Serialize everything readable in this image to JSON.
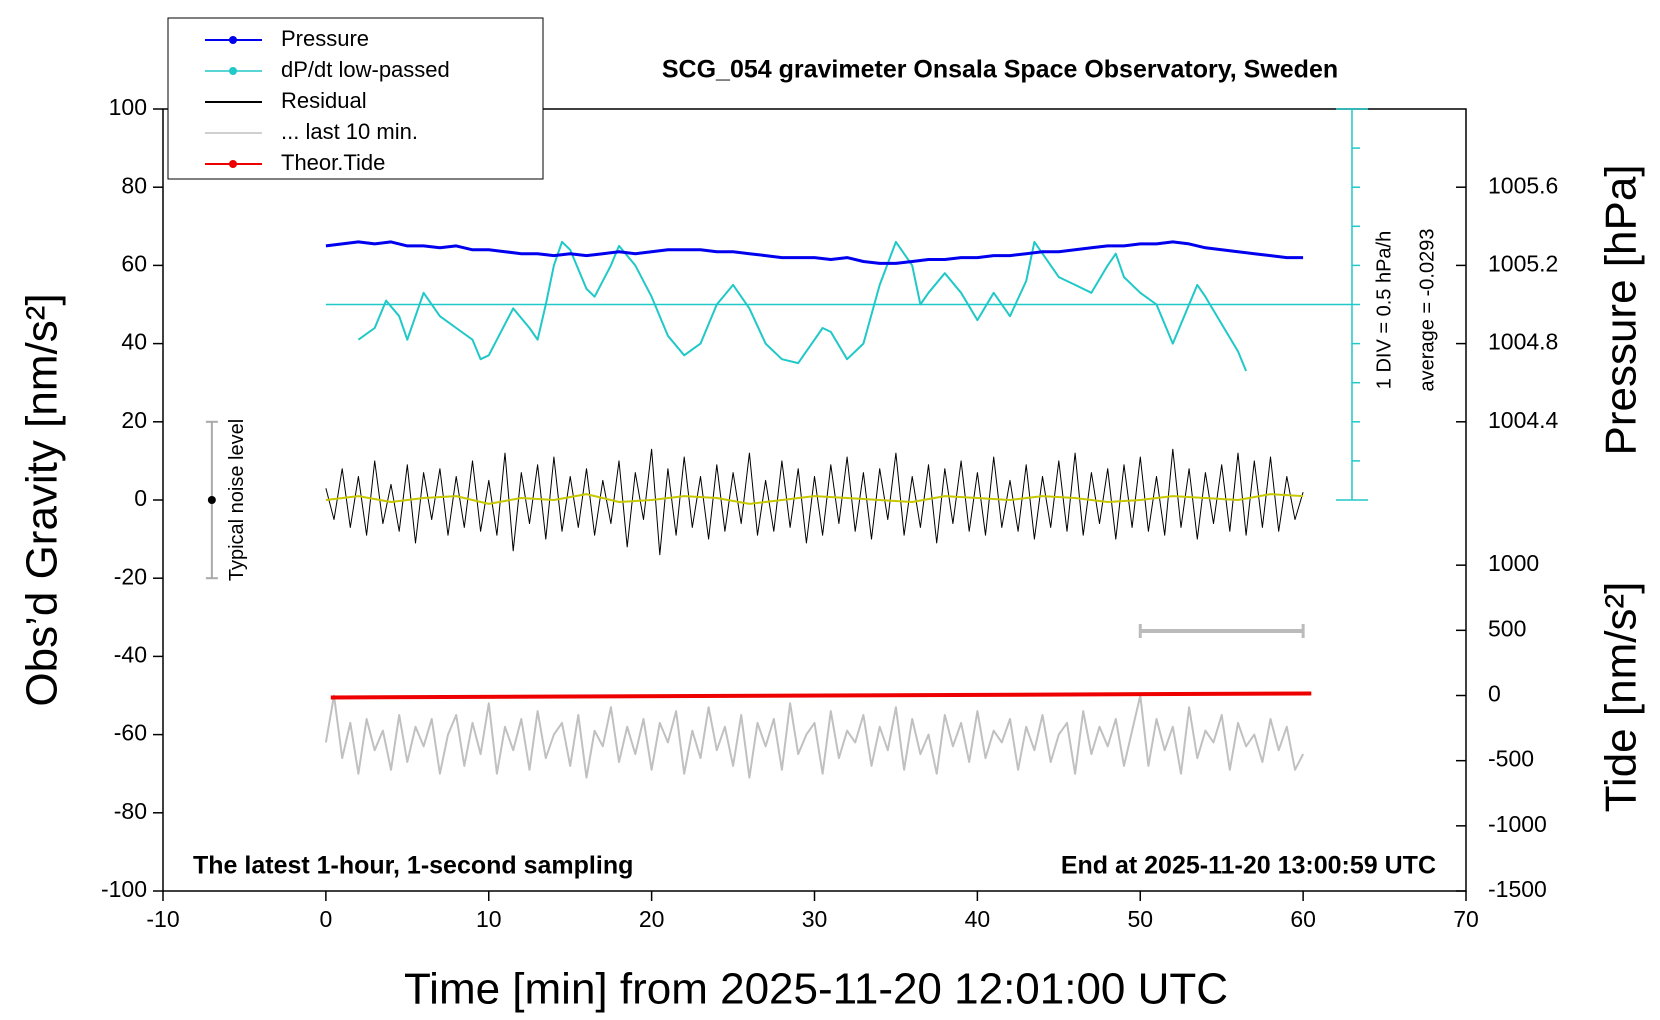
{
  "chart_data": {
    "type": "line",
    "title": "SCG_054 gravimeter Onsala Space Observatory, Sweden",
    "xlabel": "Time [min] from 2025-11-20 12:01:00 UTC",
    "ylabel": "Obs’d Gravity [nm/s²]",
    "y2label": "Pressure [hPa]",
    "y3label": "Tide [nm/s²]",
    "annotations": [
      "The latest 1-hour, 1-second sampling",
      "End at 2025-11-20 13:00:59 UTC",
      "1 DIV = 0.5 hPa/h",
      "average = -0.0293"
    ],
    "xlim": [
      -10,
      70
    ],
    "xticks": [
      -10,
      0,
      10,
      20,
      30,
      40,
      50,
      60,
      70
    ],
    "ylim": [
      -100,
      100
    ],
    "yticks": [
      -100,
      -80,
      -60,
      -40,
      -20,
      0,
      20,
      40,
      60,
      80,
      100
    ],
    "y2lim": [
      1002,
      1006
    ],
    "y2ticks": [
      1004.4,
      1004.8,
      1005.2,
      1005.6
    ],
    "y3lim": [
      -1500,
      4500
    ],
    "y3ticks": [
      -1500,
      -1000,
      -500,
      0,
      500,
      1000
    ],
    "dpdt_axis": {
      "x": 63,
      "ticks": [
        0,
        10,
        20,
        30,
        40,
        50,
        60,
        70,
        80,
        90,
        100
      ],
      "baseline": 50
    },
    "noise_level": {
      "label": "Typical noise level",
      "x": -7,
      "low": -20,
      "high": 20,
      "center": 0
    },
    "window": [
      50,
      60
    ],
    "x": [
      0,
      0.5,
      1,
      1.5,
      2,
      2.5,
      3,
      3.5,
      4,
      4.5,
      5,
      5.5,
      6,
      6.5,
      7,
      7.5,
      8,
      8.5,
      9,
      9.5,
      10,
      10.5,
      11,
      11.5,
      12,
      12.5,
      13,
      13.5,
      14,
      14.5,
      15,
      15.5,
      16,
      16.5,
      17,
      17.5,
      18,
      18.5,
      19,
      19.5,
      20,
      20.5,
      21,
      21.5,
      22,
      22.5,
      23,
      23.5,
      24,
      24.5,
      25,
      25.5,
      26,
      26.5,
      27,
      27.5,
      28,
      28.5,
      29,
      29.5,
      30,
      30.5,
      31,
      31.5,
      32,
      32.5,
      33,
      33.5,
      34,
      34.5,
      35,
      35.5,
      36,
      36.5,
      37,
      37.5,
      38,
      38.5,
      39,
      39.5,
      40,
      40.5,
      41,
      41.5,
      42,
      42.5,
      43,
      43.5,
      44,
      44.5,
      45,
      45.5,
      46,
      46.5,
      47,
      47.5,
      48,
      48.5,
      49,
      49.5,
      50,
      50.5,
      51,
      51.5,
      52,
      52.5,
      53,
      53.5,
      54,
      54.5,
      55,
      55.5,
      56,
      56.5,
      57,
      57.5,
      58,
      58.5,
      59,
      59.5,
      60
    ],
    "series": [
      {
        "name": "Pressure",
        "color": "#0000ee",
        "marker": "dot",
        "axis": "y2",
        "width": 3,
        "x": [
          0,
          1,
          2,
          3,
          4,
          5,
          6,
          7,
          8,
          9,
          10,
          11,
          12,
          13,
          14,
          15,
          16,
          17,
          18,
          19,
          20,
          21,
          22,
          23,
          24,
          25,
          26,
          27,
          28,
          29,
          30,
          31,
          32,
          33,
          34,
          35,
          36,
          37,
          38,
          39,
          40,
          41,
          42,
          43,
          44,
          45,
          46,
          47,
          48,
          49,
          50,
          51,
          52,
          53,
          54,
          55,
          56,
          57,
          58,
          59,
          60
        ],
        "values": [
          1005.3,
          1005.31,
          1005.32,
          1005.31,
          1005.32,
          1005.3,
          1005.3,
          1005.29,
          1005.3,
          1005.28,
          1005.28,
          1005.27,
          1005.26,
          1005.26,
          1005.25,
          1005.26,
          1005.25,
          1005.26,
          1005.27,
          1005.26,
          1005.27,
          1005.28,
          1005.28,
          1005.28,
          1005.27,
          1005.27,
          1005.26,
          1005.25,
          1005.24,
          1005.24,
          1005.24,
          1005.23,
          1005.24,
          1005.22,
          1005.21,
          1005.21,
          1005.22,
          1005.23,
          1005.23,
          1005.24,
          1005.24,
          1005.25,
          1005.25,
          1005.26,
          1005.27,
          1005.27,
          1005.28,
          1005.29,
          1005.3,
          1005.3,
          1005.31,
          1005.31,
          1005.32,
          1005.31,
          1005.29,
          1005.28,
          1005.27,
          1005.26,
          1005.25,
          1005.24,
          1005.24
        ]
      },
      {
        "name": "dP/dt low-passed",
        "color": "#20c8c8",
        "marker": "dot",
        "axis": "y",
        "width": 2,
        "x": [
          2,
          3,
          3.7,
          4.5,
          5,
          6,
          7,
          8,
          9,
          9.5,
          10,
          11,
          11.5,
          12.5,
          13,
          13.5,
          14,
          14.5,
          15,
          16,
          16.5,
          17.5,
          18,
          19,
          20,
          21,
          22,
          23,
          24,
          25,
          26,
          27,
          28,
          29,
          30,
          30.5,
          31,
          32,
          33,
          34,
          35,
          36,
          36.5,
          37,
          38,
          39,
          40,
          41,
          42,
          43,
          43.5,
          45,
          46,
          47,
          48,
          48.5,
          49,
          50,
          51,
          52,
          53,
          53.5,
          54,
          55,
          56,
          56.5
        ],
        "values": [
          41,
          44,
          51,
          47,
          41,
          53,
          47,
          44,
          41,
          36,
          37,
          45,
          49,
          44,
          41,
          50,
          60,
          66,
          64,
          54,
          52,
          60,
          65,
          60,
          52,
          42,
          37,
          40,
          50,
          55,
          49,
          40,
          36,
          35,
          41,
          44,
          43,
          36,
          40,
          55,
          66,
          60,
          50,
          53,
          58,
          53,
          46,
          53,
          47,
          56,
          66,
          57,
          55,
          53,
          60,
          63,
          57,
          53,
          50,
          40,
          50,
          55,
          52,
          45,
          38,
          33
        ]
      },
      {
        "name": "Residual",
        "color": "#000000",
        "axis": "y",
        "width": 1,
        "values": [
          3,
          -5,
          8,
          -7,
          6,
          -9,
          10,
          -6,
          4,
          -8,
          9,
          -11,
          7,
          -5,
          8,
          -9,
          6,
          -7,
          10,
          -8,
          5,
          -9,
          12,
          -13,
          7,
          -6,
          9,
          -10,
          11,
          -8,
          6,
          -7,
          8,
          -9,
          5,
          -6,
          10,
          -12,
          7,
          -5,
          13,
          -14,
          8,
          -9,
          11,
          -7,
          6,
          -10,
          9,
          -8,
          7,
          -6,
          12,
          -9,
          5,
          -8,
          10,
          -7,
          8,
          -11,
          6,
          -9,
          9,
          -6,
          11,
          -8,
          7,
          -10,
          8,
          -5,
          12,
          -9,
          6,
          -7,
          9,
          -11,
          8,
          -6,
          10,
          -8,
          7,
          -9,
          11,
          -7,
          5,
          -8,
          9,
          -10,
          6,
          -7,
          10,
          -8,
          12,
          -9,
          7,
          -6,
          8,
          -10,
          9,
          -7,
          11,
          -8,
          6,
          -9,
          13,
          -7,
          8,
          -10,
          7,
          -6,
          9,
          -8,
          12,
          -9,
          10,
          -7,
          11,
          -8,
          6,
          -5,
          2
        ]
      },
      {
        "color": "#c8c800",
        "axis": "y",
        "width": 2,
        "x": [
          0,
          2,
          4,
          6,
          8,
          10,
          12,
          14,
          16,
          18,
          20,
          22,
          24,
          26,
          28,
          30,
          32,
          34,
          36,
          38,
          40,
          42,
          44,
          46,
          48,
          50,
          52,
          54,
          56,
          58,
          60
        ],
        "values": [
          0,
          1,
          -0.5,
          0.5,
          1,
          -1,
          0.5,
          0,
          1.5,
          -0.5,
          0,
          1,
          0.5,
          -1,
          0,
          1,
          0.5,
          0,
          -0.5,
          1,
          0.5,
          0,
          1,
          0.5,
          -0.5,
          0,
          1,
          0.5,
          0,
          1.5,
          1
        ]
      },
      {
        "name": "... last 10 min.",
        "color": "#c0c0c0",
        "axis": "y",
        "width": 2,
        "values": [
          -62,
          -50,
          -66,
          -57,
          -70,
          -56,
          -64,
          -59,
          -69,
          -55,
          -67,
          -58,
          -63,
          -56,
          -70,
          -60,
          -55,
          -68,
          -57,
          -65,
          -52,
          -70,
          -58,
          -64,
          -56,
          -69,
          -54,
          -66,
          -60,
          -57,
          -68,
          -55,
          -71,
          -59,
          -63,
          -53,
          -67,
          -58,
          -65,
          -56,
          -69,
          -57,
          -62,
          -54,
          -70,
          -59,
          -66,
          -53,
          -64,
          -58,
          -68,
          -55,
          -71,
          -57,
          -63,
          -56,
          -69,
          -52,
          -65,
          -60,
          -57,
          -70,
          -54,
          -66,
          -59,
          -62,
          -55,
          -68,
          -58,
          -64,
          -53,
          -69,
          -56,
          -65,
          -60,
          -70,
          -55,
          -63,
          -57,
          -67,
          -54,
          -66,
          -59,
          -62,
          -56,
          -69,
          -58,
          -64,
          -55,
          -67,
          -60,
          -57,
          -70,
          -54,
          -65,
          -58,
          -63,
          -56,
          -68,
          -59,
          -50,
          -68,
          -56,
          -64,
          -58,
          -70,
          -53,
          -66,
          -59,
          -62,
          -55,
          -69,
          -57,
          -63,
          -60,
          -67,
          -56,
          -64,
          -58,
          -69,
          -65
        ]
      },
      {
        "name": "Theor.Tide",
        "color": "#ee0000",
        "marker": "dot",
        "axis": "y3",
        "width": 4,
        "x": [
          0.3,
          60.5
        ],
        "values": [
          -15,
          15
        ]
      }
    ]
  }
}
